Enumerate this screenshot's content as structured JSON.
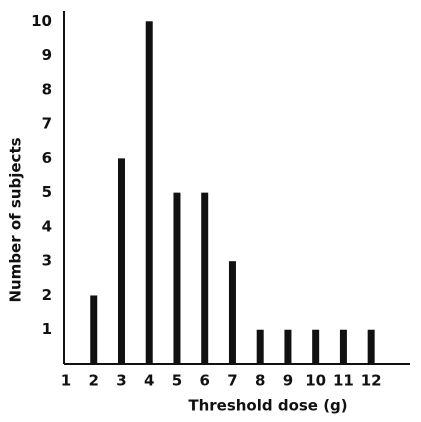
{
  "chart_data": {
    "type": "bar",
    "x_label": "Threshold dose (g)",
    "y_label": "Number of subjects",
    "x": [
      2,
      3,
      4,
      5,
      6,
      7,
      8,
      9,
      10,
      11,
      12
    ],
    "values": [
      2,
      6,
      10,
      5,
      5,
      3,
      1,
      1,
      1,
      1,
      1
    ],
    "color": "#111111",
    "xlim": [
      1,
      13.4
    ],
    "ylim": [
      0,
      10.3
    ],
    "xticks": [
      1,
      2,
      3,
      4,
      5,
      6,
      7,
      8,
      9,
      10,
      11,
      12
    ],
    "yticks": [
      1,
      2,
      3,
      4,
      5,
      6,
      7,
      8,
      9,
      10
    ],
    "grid": false
  }
}
